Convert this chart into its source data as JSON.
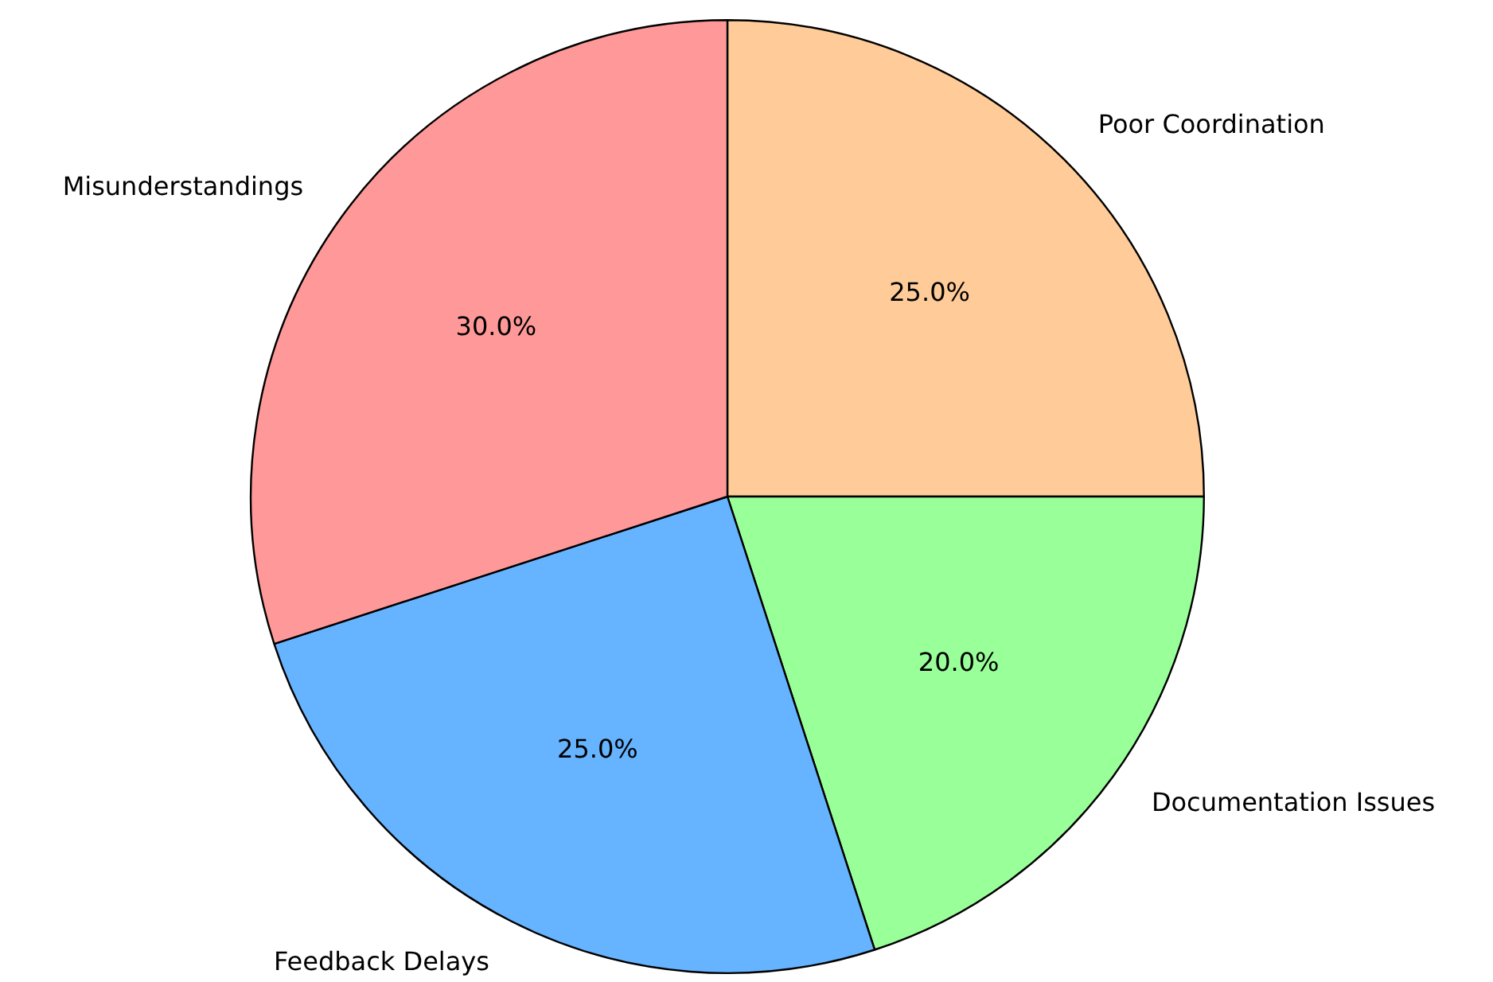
{
  "chart_data": {
    "type": "pie",
    "categories": [
      "Poor Coordination",
      "Documentation Issues",
      "Feedback Delays",
      "Misunderstandings"
    ],
    "values": [
      25,
      20,
      25,
      30
    ],
    "colors": [
      "#ffcc99",
      "#99ff99",
      "#66b3ff",
      "#ff9999"
    ],
    "value_labels": [
      "25.0%",
      "20.0%",
      "25.0%",
      "30.0%"
    ],
    "legend": false
  }
}
